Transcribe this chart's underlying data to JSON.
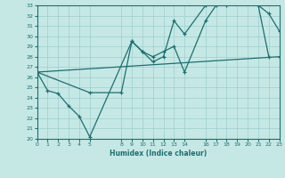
{
  "xlabel": "Humidex (Indice chaleur)",
  "background_color": "#c5e8e5",
  "grid_color": "#9ecece",
  "line_color": "#1a7070",
  "xlim": [
    0,
    23
  ],
  "ylim": [
    20,
    33
  ],
  "xticks": [
    0,
    1,
    2,
    3,
    4,
    5,
    8,
    9,
    10,
    11,
    12,
    13,
    14,
    16,
    17,
    18,
    19,
    20,
    21,
    22,
    23
  ],
  "yticks": [
    20,
    21,
    22,
    23,
    24,
    25,
    26,
    27,
    28,
    29,
    30,
    31,
    32,
    33
  ],
  "line1_x": [
    0,
    1,
    2,
    3,
    4,
    5,
    9,
    10,
    11,
    12,
    13,
    14,
    16,
    17,
    18,
    21,
    22,
    23
  ],
  "line1_y": [
    26.5,
    24.7,
    24.4,
    23.2,
    22.2,
    20.2,
    29.5,
    28.5,
    28.0,
    28.5,
    29.0,
    26.5,
    31.5,
    33.0,
    33.0,
    33.0,
    32.2,
    30.5
  ],
  "line2_x": [
    0,
    5,
    8,
    9,
    10,
    11,
    12,
    13,
    14,
    16,
    17,
    18,
    21,
    22
  ],
  "line2_y": [
    26.5,
    24.5,
    24.5,
    29.5,
    28.5,
    27.5,
    28.0,
    31.5,
    30.2,
    33.0,
    33.2,
    33.2,
    33.0,
    28.0
  ],
  "line3_x": [
    0,
    23
  ],
  "line3_y": [
    26.5,
    28.0
  ]
}
